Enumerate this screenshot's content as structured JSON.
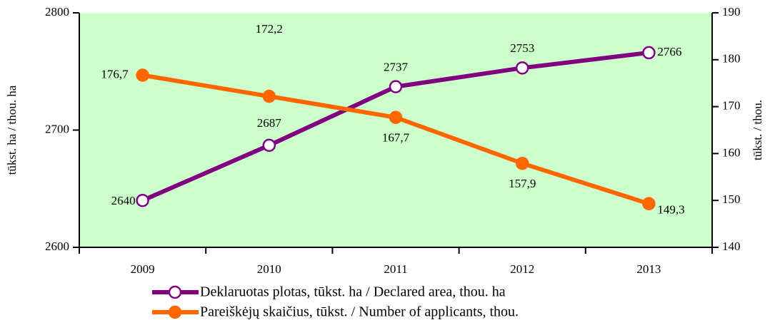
{
  "chart_data": {
    "type": "line",
    "categories": [
      "2009",
      "2010",
      "2011",
      "2012",
      "2013"
    ],
    "ylabel": "tūkst. ha / thou. ha",
    "y2label": "tūkst. / thou.",
    "ylim": [
      2600,
      2800
    ],
    "yticks": [
      2600,
      2700,
      2800
    ],
    "y2lim": [
      140,
      190
    ],
    "y2ticks": [
      140,
      150,
      160,
      170,
      180,
      190
    ],
    "background": "#ccffcc",
    "series": [
      {
        "name": "Deklaruotas plotas, tūkst. ha / Declared area, thou. ha",
        "color": "#800080",
        "marker": "open",
        "values": [
          2640,
          2687,
          2737,
          2753,
          2766
        ]
      },
      {
        "name": "Pareiškėjų skaičius, tūkst. / Number of applicants, thou.",
        "color": "#ff6600",
        "marker": "filled",
        "axis": "y2",
        "values": [
          176.7,
          172.2,
          167.7,
          157.9,
          149.3
        ],
        "value_labels": [
          "176,7",
          "172,2",
          "167,7",
          "157,9",
          "149,3"
        ]
      }
    ]
  }
}
